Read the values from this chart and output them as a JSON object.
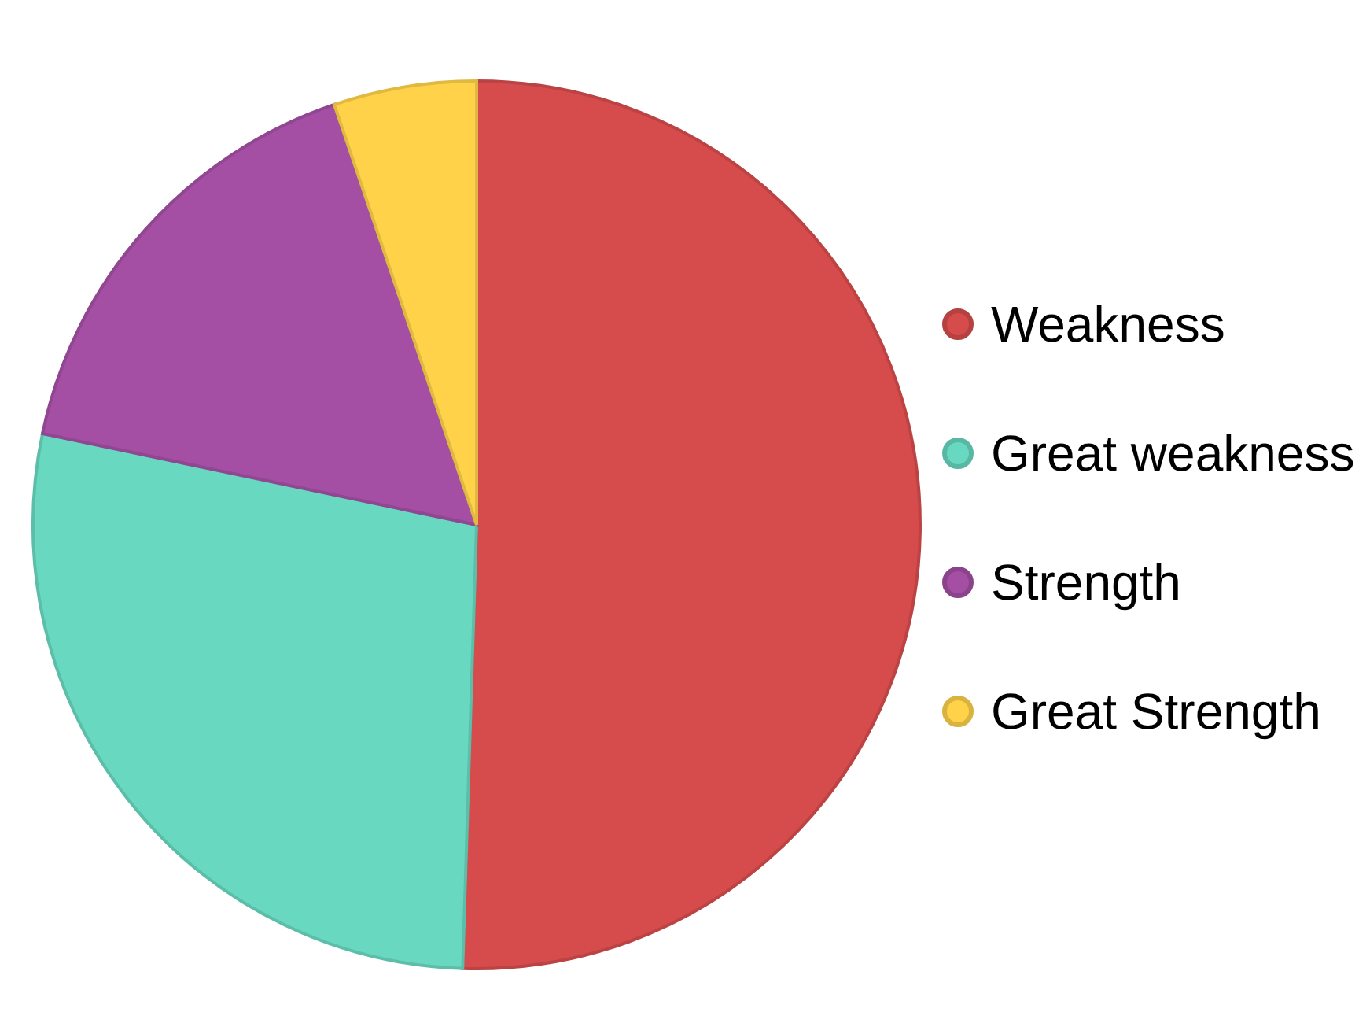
{
  "chart_data": {
    "type": "pie",
    "categories": [
      "Weakness",
      "Great weakness",
      "Strength",
      "Great Strength"
    ],
    "values": [
      50.5,
      27.8,
      16.5,
      5.2
    ],
    "colors": [
      "#d64c4c",
      "#69d8c0",
      "#a44fa4",
      "#ffd24a"
    ],
    "legend": "right"
  }
}
